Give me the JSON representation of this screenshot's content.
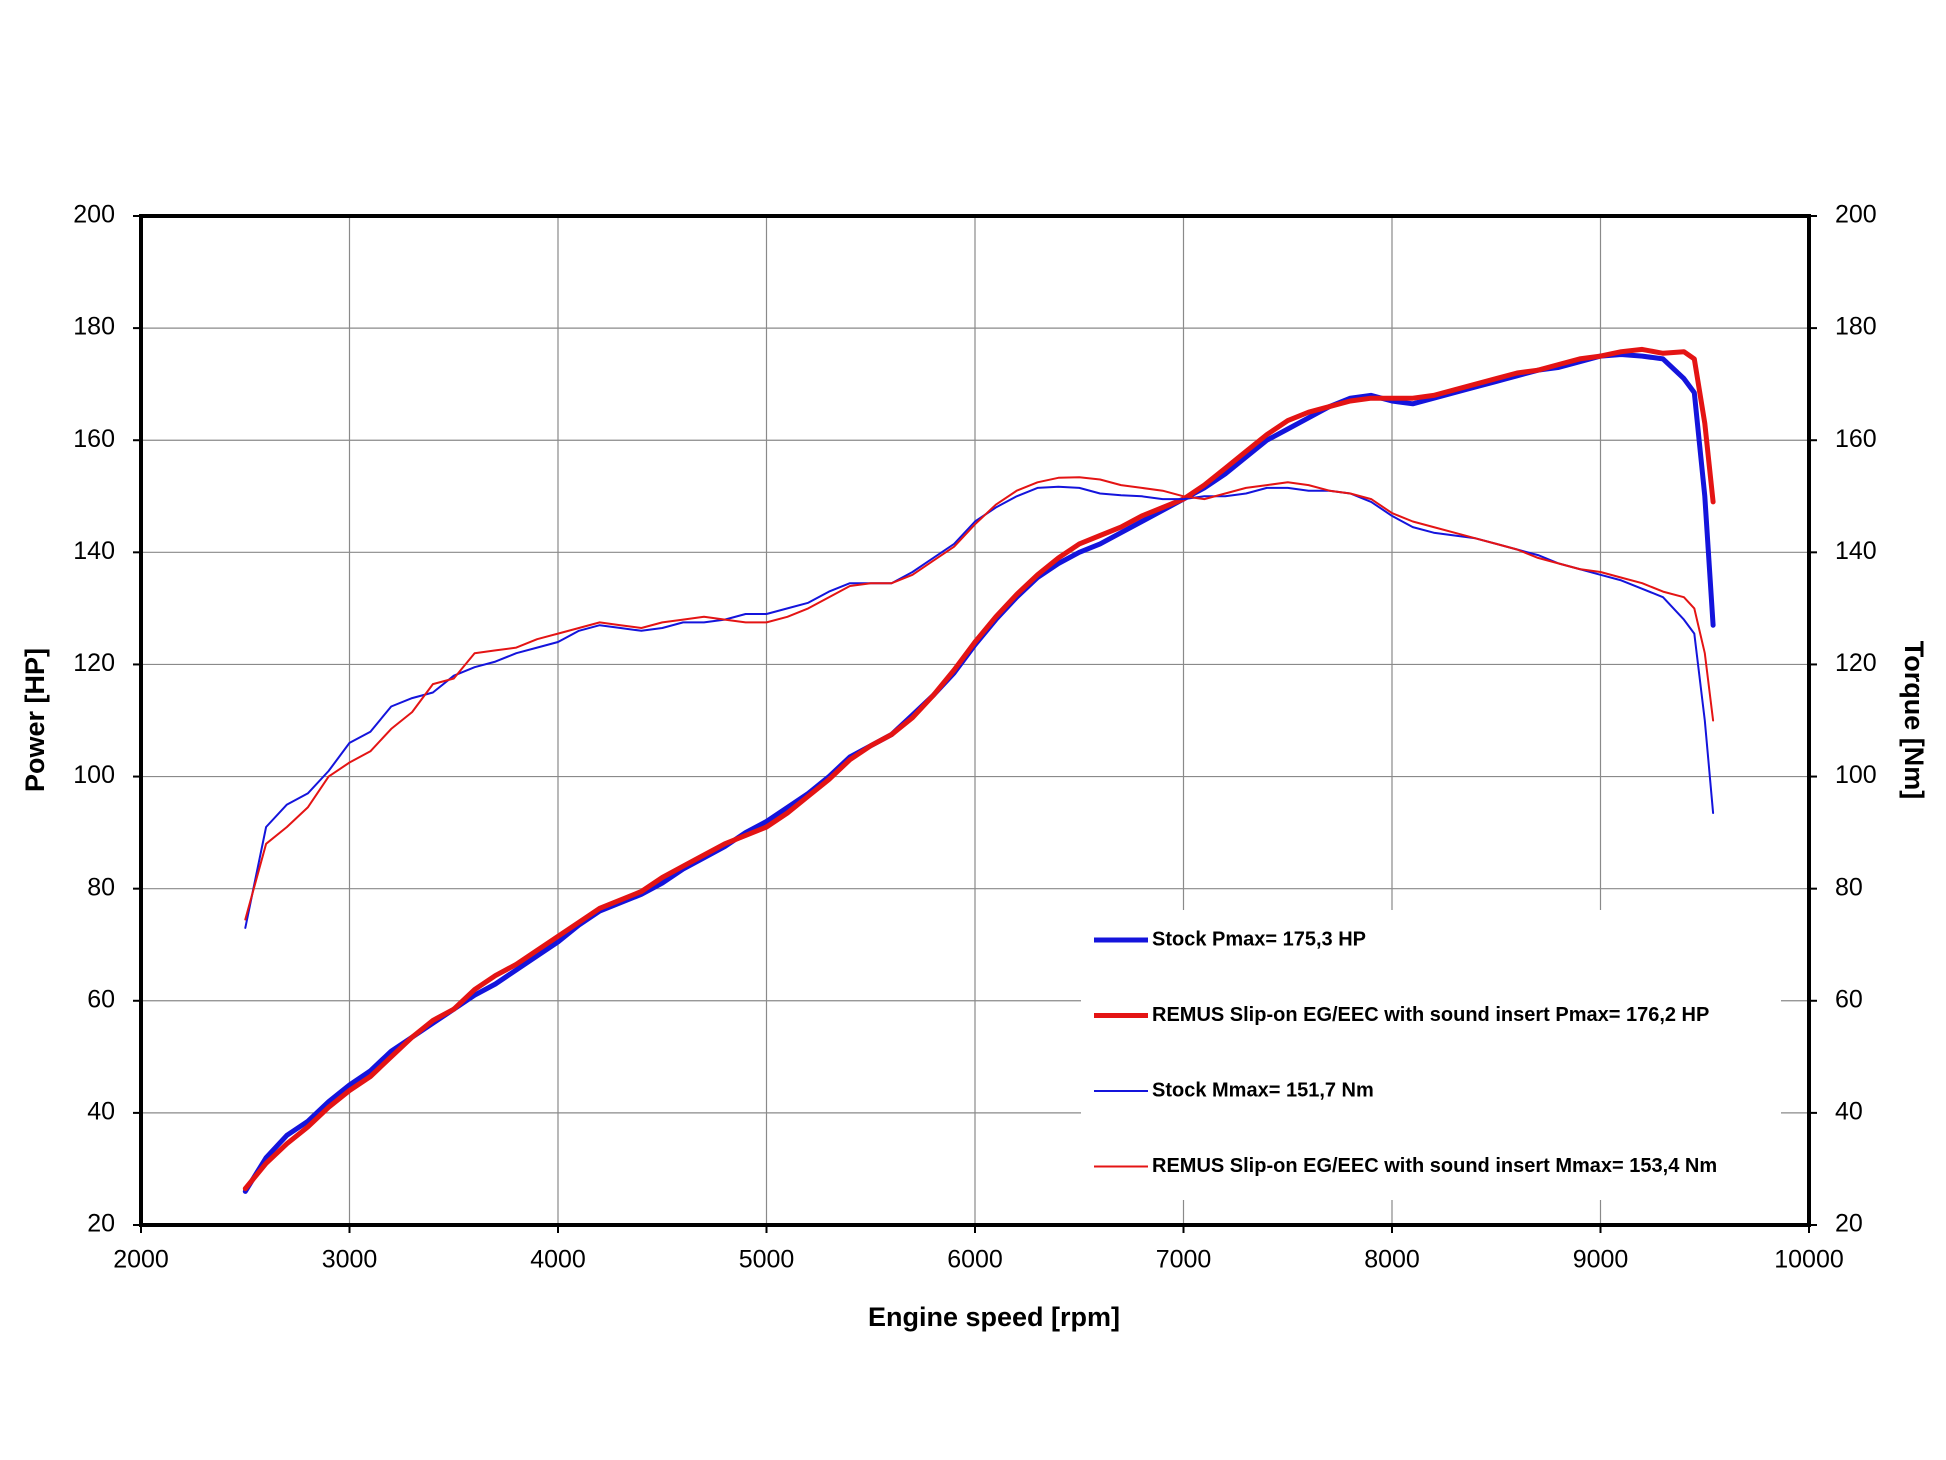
{
  "chart_data": {
    "type": "line",
    "xlabel": "Engine speed [rpm]",
    "ylabel": "Power [HP]",
    "y2label": "Torque [Nm]",
    "xlim": [
      2000,
      10000
    ],
    "xticks": [
      2000,
      3000,
      4000,
      5000,
      6000,
      7000,
      8000,
      9000,
      10000
    ],
    "ylim": [
      20,
      200
    ],
    "yticks": [
      20,
      40,
      60,
      80,
      100,
      120,
      140,
      160,
      180,
      200
    ],
    "y2lim": [
      20,
      200
    ],
    "y2ticks": [
      20,
      40,
      60,
      80,
      100,
      120,
      140,
      160,
      180,
      200
    ],
    "grid": true,
    "legend": "lower right",
    "x": [
      2500,
      2600,
      2700,
      2800,
      2900,
      3000,
      3100,
      3200,
      3300,
      3400,
      3500,
      3600,
      3700,
      3800,
      3900,
      4000,
      4100,
      4200,
      4300,
      4400,
      4500,
      4600,
      4700,
      4800,
      4900,
      5000,
      5100,
      5200,
      5300,
      5400,
      5500,
      5600,
      5700,
      5800,
      5900,
      6000,
      6100,
      6200,
      6300,
      6400,
      6500,
      6600,
      6700,
      6800,
      6900,
      7000,
      7100,
      7200,
      7300,
      7400,
      7500,
      7600,
      7700,
      7800,
      7900,
      8000,
      8100,
      8200,
      8300,
      8400,
      8500,
      8600,
      8700,
      8800,
      8900,
      9000,
      9100,
      9200,
      9300,
      9400,
      9450,
      9500,
      9540
    ],
    "series": [
      {
        "name": "Stock Pmax= 175,3 HP",
        "color": "#1414dc",
        "width": 5,
        "values": [
          26,
          32,
          36,
          38.5,
          42,
          45,
          47.5,
          51,
          53.5,
          56,
          58.5,
          61,
          63,
          65.5,
          68,
          70.5,
          73.5,
          76,
          77.5,
          79,
          81,
          83.5,
          85.5,
          87.5,
          90,
          92,
          94.5,
          97,
          100,
          103.5,
          105.5,
          107.5,
          111,
          114.5,
          118.5,
          123.5,
          128,
          132,
          135.5,
          138,
          140,
          141.5,
          143.5,
          145.5,
          147.5,
          149.5,
          151.5,
          154,
          157,
          160,
          162,
          164,
          166,
          167.5,
          168,
          167,
          166.5,
          167.5,
          168.5,
          169.5,
          170.5,
          171.5,
          172.5,
          173,
          174,
          175,
          175.3,
          175,
          174.5,
          171,
          168.5,
          150,
          127
        ]
      },
      {
        "name": "REMUS Slip-on EG/EEC with sound insert Pmax=  176,2 HP",
        "color": "#e41414",
        "width": 5,
        "values": [
          26.5,
          31,
          34.5,
          37.5,
          41,
          44,
          46.5,
          50,
          53.5,
          56.5,
          58.5,
          62,
          64.5,
          66.5,
          69,
          71.5,
          74,
          76.5,
          78,
          79.5,
          82,
          84,
          86,
          88,
          89.5,
          91,
          93.5,
          96.5,
          99.5,
          103,
          105.5,
          107.5,
          110.5,
          114.5,
          119,
          124,
          128.5,
          132.5,
          136,
          139,
          141.5,
          143,
          144.5,
          146.5,
          148,
          149.5,
          152,
          155,
          158,
          161,
          163.5,
          165,
          166,
          167,
          167.5,
          167.5,
          167.5,
          168,
          169,
          170,
          171,
          172,
          172.5,
          173.5,
          174.5,
          175,
          175.8,
          176.2,
          175.5,
          175.8,
          174.5,
          163,
          149
        ]
      },
      {
        "name": "Stock Mmax= 151,7 Nm",
        "color": "#1414dc",
        "width": 2,
        "axis": "y2",
        "values": [
          73,
          91,
          95,
          97,
          101,
          106,
          108,
          112.5,
          114,
          115,
          118,
          119.5,
          120.5,
          122,
          123,
          124,
          126,
          127,
          126.5,
          126,
          126.5,
          127.5,
          127.5,
          128,
          129,
          129,
          130,
          131,
          133,
          134.5,
          134.5,
          134.5,
          136.5,
          139,
          141.5,
          145.5,
          148,
          150,
          151.5,
          151.7,
          151.5,
          150.5,
          150.2,
          150,
          149.5,
          149.5,
          150,
          150,
          150.5,
          151.5,
          151.5,
          151,
          151,
          150.5,
          149,
          146.5,
          144.5,
          143.5,
          143,
          142.5,
          141.5,
          140.5,
          139.5,
          138,
          137,
          136,
          135,
          133.5,
          132,
          128,
          125.5,
          110,
          93.5
        ]
      },
      {
        "name": "REMUS Slip-on EG/EEC with sound insert Mmax= 153,4 Nm",
        "color": "#e41414",
        "width": 2,
        "axis": "y2",
        "values": [
          74.5,
          88,
          91,
          94.5,
          100,
          102.5,
          104.5,
          108.5,
          111.5,
          116.5,
          117.5,
          122,
          122.5,
          123,
          124.5,
          125.5,
          126.5,
          127.5,
          127,
          126.5,
          127.5,
          128,
          128.5,
          128,
          127.5,
          127.5,
          128.5,
          130,
          132,
          134,
          134.5,
          134.5,
          136,
          138.5,
          141,
          145,
          148.5,
          151,
          152.5,
          153.3,
          153.4,
          153,
          152,
          151.5,
          151,
          150,
          149.5,
          150.5,
          151.5,
          152,
          152.5,
          152,
          151,
          150.5,
          149.5,
          147,
          145.5,
          144.5,
          143.5,
          142.5,
          141.5,
          140.5,
          139,
          138,
          137,
          136.5,
          135.5,
          134.5,
          133,
          132,
          130,
          122,
          110
        ]
      }
    ]
  }
}
